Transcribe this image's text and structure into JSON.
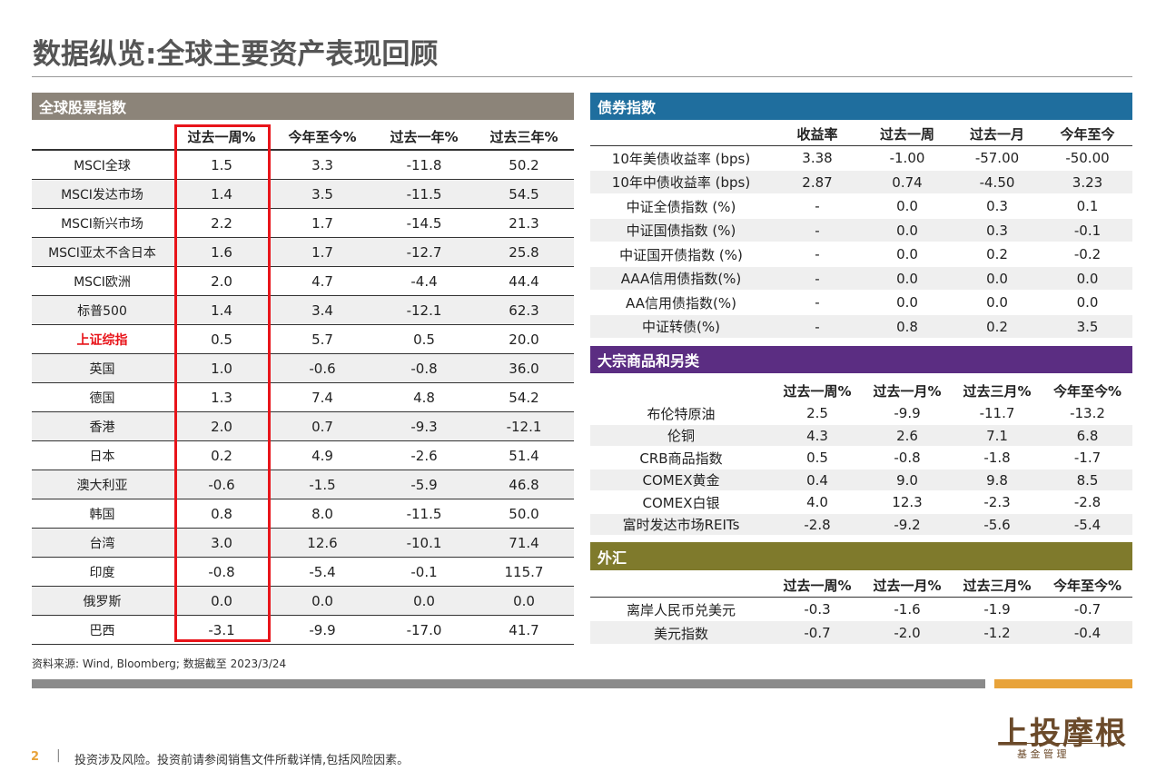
{
  "title": "数据纵览:全球主要资产表现回顾",
  "equity": {
    "heading": "全球股票指数",
    "columns": [
      "过去一周%",
      "今年至今%",
      "过去一年%",
      "过去三年%"
    ],
    "rows": [
      [
        "MSCI全球",
        "1.5",
        "3.3",
        "-11.8",
        "50.2"
      ],
      [
        "MSCI发达市场",
        "1.4",
        "3.5",
        "-11.5",
        "54.5"
      ],
      [
        "MSCI新兴市场",
        "2.2",
        "1.7",
        "-14.5",
        "21.3"
      ],
      [
        "MSCI亚太不含日本",
        "1.6",
        "1.7",
        "-12.7",
        "25.8"
      ],
      [
        "MSCI欧洲",
        "2.0",
        "4.7",
        "-4.4",
        "44.4"
      ],
      [
        "标普500",
        "1.4",
        "3.4",
        "-12.1",
        "62.3"
      ],
      [
        "上证综指",
        "0.5",
        "5.7",
        "0.5",
        "20.0"
      ],
      [
        "英国",
        "1.0",
        "-0.6",
        "-0.8",
        "36.0"
      ],
      [
        "德国",
        "1.3",
        "7.4",
        "4.8",
        "54.2"
      ],
      [
        "香港",
        "2.0",
        "0.7",
        "-9.3",
        "-12.1"
      ],
      [
        "日本",
        "0.2",
        "4.9",
        "-2.6",
        "51.4"
      ],
      [
        "澳大利亚",
        "-0.6",
        "-1.5",
        "-5.9",
        "46.8"
      ],
      [
        "韩国",
        "0.8",
        "8.0",
        "-11.5",
        "50.0"
      ],
      [
        "台湾",
        "3.0",
        "12.6",
        "-10.1",
        "71.4"
      ],
      [
        "印度",
        "-0.8",
        "-5.4",
        "-0.1",
        "115.7"
      ],
      [
        "俄罗斯",
        "0.0",
        "0.0",
        "0.0",
        "0.0"
      ],
      [
        "巴西",
        "-3.1",
        "-9.9",
        "-17.0",
        "41.7"
      ]
    ]
  },
  "bonds": {
    "heading": "债券指数",
    "columns": [
      "收益率",
      "过去一周",
      "过去一月",
      "今年至今"
    ],
    "rows": [
      [
        "10年美债收益率 (bps)",
        "3.38",
        "-1.00",
        "-57.00",
        "-50.00"
      ],
      [
        "10年中债收益率 (bps)",
        "2.87",
        "0.74",
        "-4.50",
        "3.23"
      ],
      [
        "中证全债指数 (%)",
        "-",
        "0.0",
        "0.3",
        "0.1"
      ],
      [
        "中证国债指数 (%)",
        "-",
        "0.0",
        "0.3",
        "-0.1"
      ],
      [
        "中证国开债指数 (%)",
        "-",
        "0.0",
        "0.2",
        "-0.2"
      ],
      [
        "AAA信用债指数(%)",
        "-",
        "0.0",
        "0.0",
        "0.0"
      ],
      [
        "AA信用债指数(%)",
        "-",
        "0.0",
        "0.0",
        "0.0"
      ],
      [
        "中证转债(%)",
        "-",
        "0.8",
        "0.2",
        "3.5"
      ]
    ]
  },
  "commodities": {
    "heading": "大宗商品和另类",
    "columns": [
      "过去一周%",
      "过去一月%",
      "过去三月%",
      "今年至今%"
    ],
    "rows": [
      [
        "布伦特原油",
        "2.5",
        "-9.9",
        "-11.7",
        "-13.2"
      ],
      [
        "伦铜",
        "4.3",
        "2.6",
        "7.1",
        "6.8"
      ],
      [
        "CRB商品指数",
        "0.5",
        "-0.8",
        "-1.8",
        "-1.7"
      ],
      [
        "COMEX黄金",
        "0.4",
        "9.0",
        "9.8",
        "8.5"
      ],
      [
        "COMEX白银",
        "4.0",
        "12.3",
        "-2.3",
        "-2.8"
      ],
      [
        "富时发达市场REITs",
        "-2.8",
        "-9.2",
        "-5.6",
        "-5.4"
      ]
    ]
  },
  "fx": {
    "heading": "外汇",
    "columns": [
      "过去一周%",
      "过去一月%",
      "过去三月%",
      "今年至今%"
    ],
    "rows": [
      [
        "离岸人民币兑美元",
        "-0.3",
        "-1.6",
        "-1.9",
        "-0.7"
      ],
      [
        "美元指数",
        "-0.7",
        "-2.0",
        "-1.2",
        "-0.4"
      ]
    ]
  },
  "source": "资料来源: Wind, Bloomberg; 数据截至 2023/3/24",
  "page_number": "2",
  "disclaimer": "投资涉及风险。投资前请参阅销售文件所载详情,包括风险因素。",
  "logo": {
    "name": "上投摩根",
    "tagline": "基 金 管 理"
  }
}
